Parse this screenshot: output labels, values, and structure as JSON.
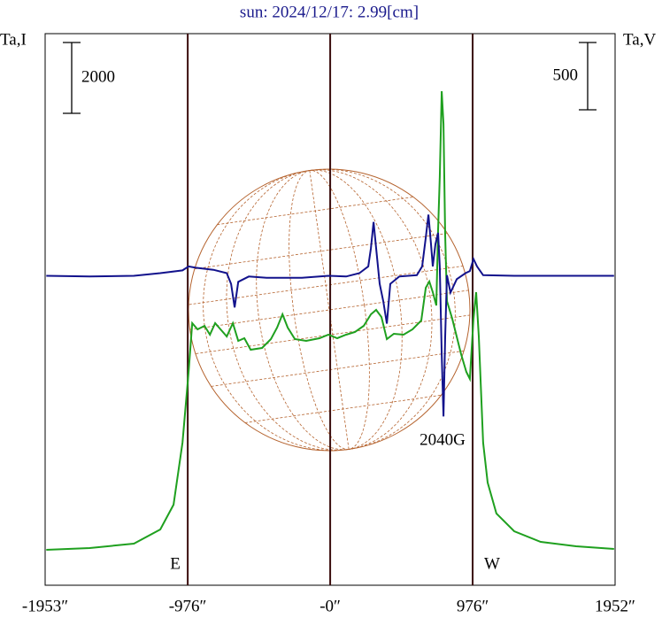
{
  "chart_data": {
    "type": "line",
    "title": "sun: 2024/12/17: 2.99[cm]",
    "y_label": "Ta,I",
    "y2_label": "Ta,V",
    "scale_bar": 2000,
    "scale_bar_y2": 500,
    "annotations": [
      "E",
      "W",
      "2040G"
    ],
    "xlim": [
      -1953,
      1952
    ],
    "xticks": [
      {
        "value": -1953,
        "label": "-1953″"
      },
      {
        "value": -976,
        "label": "-976″"
      },
      {
        "value": 0,
        "label": "-0″"
      },
      {
        "value": 976,
        "label": "976″"
      },
      {
        "value": 1952,
        "label": "1952″"
      }
    ],
    "ylim": [
      0,
      15575
    ],
    "y2lim": [
      -2300,
      1800
    ],
    "series": [
      {
        "color": "#1fa01f",
        "x": [
          -1945,
          -1648,
          -1345,
          -1164,
          -1073,
          -1012,
          -970,
          -945,
          -909,
          -861,
          -824,
          -788,
          -751,
          -709,
          -667,
          -630,
          -588,
          -545,
          -467,
          -406,
          -364,
          -327,
          -291,
          -242,
          -164,
          -73,
          -12,
          48,
          109,
          170,
          230,
          279,
          315,
          351,
          388,
          436,
          503,
          564,
          624,
          655,
          679,
          703,
          727,
          739,
          751,
          764,
          776,
          788,
          800,
          836,
          897,
          933,
          957,
          982,
          1000,
          1018,
          1048,
          1079,
          1139,
          1261,
          1442,
          1685,
          1945
        ],
        "values": [
          1000,
          1050,
          1175,
          1575,
          2275,
          4025,
          6025,
          7400,
          7225,
          7325,
          7075,
          7400,
          7225,
          7025,
          7400,
          6900,
          6975,
          6650,
          6700,
          6950,
          7275,
          7650,
          7275,
          6950,
          6900,
          6975,
          7075,
          6975,
          7075,
          7150,
          7325,
          7650,
          7775,
          7575,
          6950,
          7100,
          7075,
          7225,
          7475,
          8400,
          8575,
          8275,
          7900,
          10025,
          11525,
          13950,
          13025,
          9900,
          8025,
          7525,
          6525,
          6025,
          5825,
          7525,
          8275,
          7025,
          4025,
          2900,
          2025,
          1525,
          1225,
          1100,
          1025
        ]
      },
      {
        "color": "#12128c",
        "axis": "y2",
        "x": [
          -1945,
          -1648,
          -1345,
          -1164,
          -1012,
          -970,
          -921,
          -800,
          -709,
          -679,
          -655,
          -630,
          -558,
          -436,
          -194,
          -12,
          109,
          200,
          261,
          279,
          297,
          315,
          339,
          364,
          388,
          412,
          473,
          594,
          630,
          655,
          673,
          691,
          703,
          721,
          739,
          751,
          764,
          776,
          788,
          800,
          824,
          867,
          927,
          957,
          982,
          1006,
          1048,
          1261,
          1624,
          1945
        ],
        "values": [
          0,
          -5,
          0,
          20,
          40,
          70,
          60,
          45,
          20,
          -60,
          -235,
          -45,
          -5,
          -15,
          -15,
          0,
          -5,
          20,
          70,
          205,
          400,
          205,
          -60,
          -190,
          -355,
          -60,
          -5,
          5,
          70,
          285,
          455,
          235,
          70,
          235,
          320,
          70,
          -585,
          -1045,
          -455,
          5,
          -125,
          -25,
          20,
          35,
          125,
          70,
          5,
          0,
          0,
          0
        ]
      }
    ]
  }
}
